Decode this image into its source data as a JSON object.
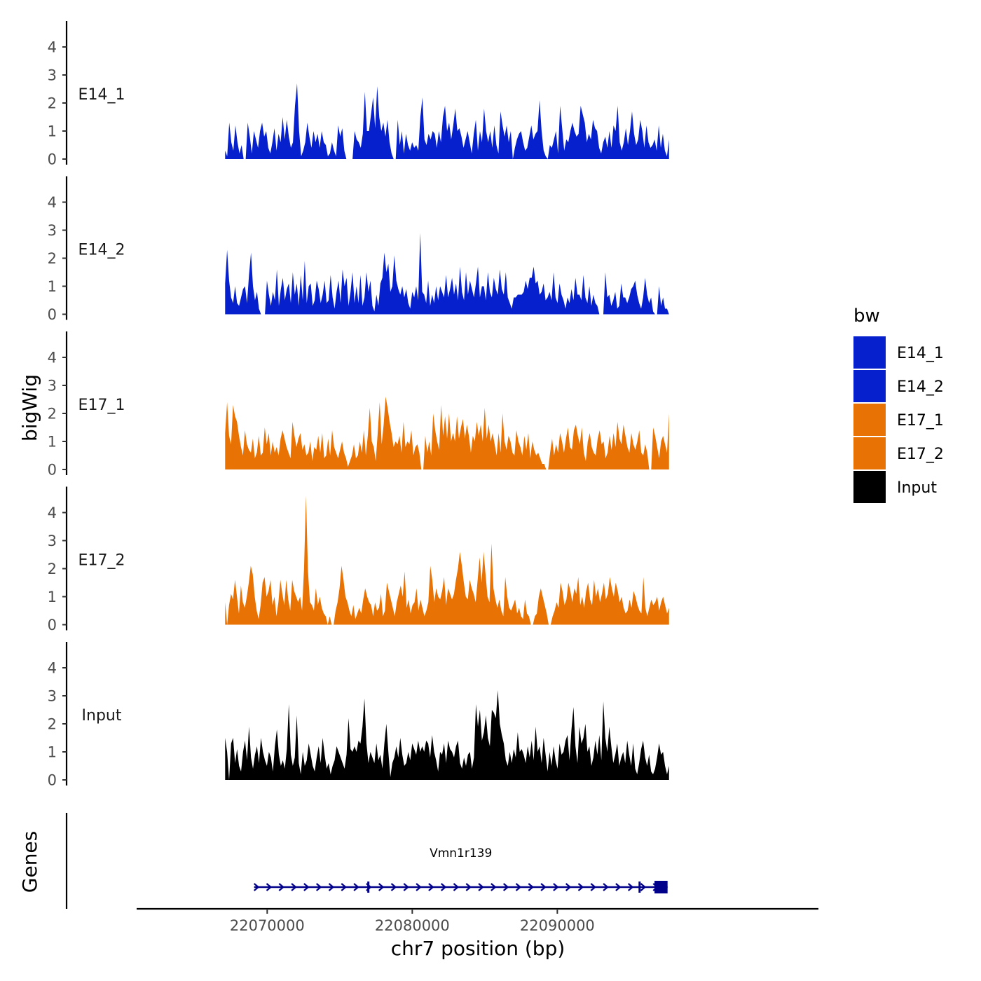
{
  "chart_data": {
    "type": "area",
    "ylabel": "bigWig",
    "xlabel": "chr7 position (bp)",
    "xlim": [
      22061000,
      22108000
    ],
    "region": [
      22067100,
      22097700
    ],
    "x_ticks": [
      22070000,
      22080000,
      22090000
    ],
    "x_tick_labels": [
      "22070000",
      "22080000",
      "22090000"
    ],
    "ylim": [
      0,
      4.9
    ],
    "y_ticks": [
      0,
      1,
      2,
      3,
      4
    ],
    "y_tick_labels": [
      "0",
      "1",
      "2",
      "3",
      "4"
    ],
    "legend": {
      "title": "bw",
      "entries": [
        {
          "name": "E14_1",
          "color": "#0520CC"
        },
        {
          "name": "E14_2",
          "color": "#0520CC"
        },
        {
          "name": "E17_1",
          "color": "#E87203"
        },
        {
          "name": "E17_2",
          "color": "#E87203"
        },
        {
          "name": "Input",
          "color": "#000000"
        }
      ]
    },
    "series": [
      {
        "name": "E14_1",
        "color": "#0520CC",
        "values": [
          0.3,
          0.1,
          1.3,
          0.6,
          0.3,
          1.2,
          0.6,
          0.2,
          0.5,
          0.0,
          0.0,
          1.3,
          0.8,
          0.2,
          1.0,
          0.7,
          0.4,
          1.0,
          1.3,
          0.8,
          1.0,
          0.4,
          0.2,
          0.6,
          1.1,
          0.3,
          0.9,
          0.6,
          1.5,
          0.7,
          1.4,
          0.8,
          0.4,
          0.6,
          1.9,
          2.7,
          1.0,
          0.1,
          0.3,
          0.6,
          1.3,
          0.8,
          0.4,
          1.0,
          0.6,
          0.9,
          0.4,
          1.0,
          0.6,
          0.5,
          0.1,
          0.2,
          0.6,
          0.3,
          0.1,
          1.2,
          0.8,
          1.1,
          0.3,
          0.0,
          0.0,
          0.0,
          0.0,
          1.0,
          0.7,
          0.6,
          0.4,
          0.9,
          2.4,
          1.0,
          1.0,
          1.6,
          2.2,
          1.1,
          2.6,
          1.5,
          1.0,
          1.3,
          0.8,
          1.4,
          0.6,
          0.2,
          0.0,
          0.0,
          1.4,
          0.5,
          1.0,
          0.2,
          0.9,
          0.5,
          0.3,
          0.6,
          0.4,
          0.5,
          0.3,
          1.5,
          2.2,
          0.7,
          0.5,
          0.9,
          0.7,
          1.0,
          0.9,
          0.4,
          1.0,
          0.6,
          1.5,
          1.9,
          1.0,
          1.3,
          0.7,
          1.2,
          1.8,
          1.0,
          1.1,
          0.8,
          0.4,
          0.7,
          1.0,
          0.6,
          0.2,
          0.9,
          1.4,
          0.3,
          1.0,
          0.6,
          1.8,
          1.0,
          0.6,
          1.0,
          0.4,
          1.2,
          0.5,
          0.2,
          1.7,
          1.2,
          0.8,
          1.2,
          0.6,
          1.0,
          0.0,
          0.4,
          0.7,
          0.9,
          1.0,
          0.6,
          0.3,
          0.4,
          0.8,
          1.2,
          0.7,
          0.9,
          1.0,
          2.1,
          1.0,
          0.3,
          0.1,
          0.0,
          0.5,
          0.4,
          0.7,
          1.0,
          0.2,
          1.9,
          1.1,
          0.3,
          0.7,
          0.6,
          1.0,
          1.3,
          1.0,
          0.8,
          0.9,
          1.9,
          1.6,
          1.3,
          0.6,
          0.9,
          0.7,
          1.4,
          1.1,
          1.0,
          0.4,
          0.2,
          0.6,
          0.8,
          0.4,
          1.0,
          0.4,
          1.2,
          1.0,
          1.9,
          0.6,
          0.3,
          0.6,
          1.1,
          0.5,
          1.0,
          1.7,
          0.9,
          0.5,
          0.7,
          1.4,
          1.0,
          0.4,
          1.2,
          0.6,
          0.4,
          0.5,
          0.7,
          0.3,
          1.2,
          0.4,
          0.9,
          0.3,
          0.1,
          0.7
        ]
      },
      {
        "name": "E14_2",
        "color": "#0520CC",
        "values": [
          1.1,
          2.3,
          1.2,
          0.6,
          0.4,
          1.0,
          0.4,
          0.3,
          0.6,
          0.9,
          1.0,
          0.4,
          1.4,
          2.2,
          1.0,
          0.5,
          0.8,
          0.2,
          0.0,
          0.0,
          0.0,
          1.2,
          0.7,
          0.3,
          0.8,
          0.5,
          1.6,
          0.3,
          0.9,
          1.3,
          0.5,
          0.9,
          1.1,
          0.4,
          1.5,
          0.7,
          1.1,
          0.3,
          1.4,
          0.5,
          1.9,
          0.4,
          1.0,
          1.1,
          0.3,
          0.5,
          1.2,
          0.9,
          0.4,
          0.7,
          1.2,
          0.4,
          0.5,
          1.4,
          0.6,
          0.2,
          0.8,
          1.2,
          0.4,
          1.6,
          1.0,
          1.3,
          0.3,
          0.8,
          1.5,
          0.4,
          1.0,
          0.4,
          1.4,
          0.3,
          0.6,
          1.5,
          0.8,
          1.2,
          0.3,
          0.1,
          0.7,
          0.3,
          1.1,
          1.3,
          2.2,
          1.5,
          1.8,
          0.8,
          1.0,
          2.1,
          1.2,
          0.9,
          0.7,
          1.0,
          0.6,
          0.9,
          0.4,
          0.2,
          0.8,
          0.6,
          1.0,
          0.5,
          2.9,
          0.8,
          0.7,
          0.4,
          1.2,
          0.3,
          0.7,
          0.4,
          1.0,
          0.5,
          1.0,
          0.8,
          0.6,
          1.4,
          0.6,
          0.9,
          1.3,
          0.7,
          1.1,
          0.5,
          1.7,
          0.8,
          0.5,
          1.5,
          0.7,
          1.2,
          0.9,
          0.6,
          1.1,
          1.7,
          0.6,
          1.0,
          1.0,
          0.5,
          1.5,
          0.8,
          0.6,
          1.3,
          0.9,
          0.7,
          1.6,
          0.9,
          0.7,
          1.5,
          0.6,
          0.4,
          0.2,
          0.6,
          0.6,
          0.7,
          0.7,
          0.7,
          0.8,
          1.2,
          0.9,
          1.3,
          1.3,
          1.7,
          1.1,
          1.2,
          0.7,
          0.8,
          1.1,
          0.5,
          0.6,
          0.8,
          0.5,
          1.5,
          0.6,
          0.4,
          1.1,
          0.7,
          0.5,
          0.2,
          0.6,
          0.4,
          0.9,
          0.5,
          1.3,
          0.7,
          0.7,
          0.5,
          1.4,
          0.6,
          0.4,
          1.0,
          0.3,
          0.7,
          0.4,
          0.3,
          0.0,
          0.0,
          0.0,
          1.5,
          0.6,
          0.7,
          0.3,
          0.5,
          0.8,
          0.2,
          0.3,
          1.1,
          0.6,
          0.6,
          0.4,
          0.6,
          0.9,
          1.0,
          1.2,
          0.7,
          0.4,
          0.2,
          0.6,
          1.3,
          0.7,
          0.4,
          0.6,
          0.1,
          0.0,
          0.0,
          1.0,
          0.3,
          0.6,
          0.2,
          0.2,
          0.0
        ]
      },
      {
        "name": "E17_1",
        "color": "#E87203",
        "values": [
          1.3,
          2.4,
          1.2,
          0.9,
          2.3,
          1.9,
          1.7,
          1.2,
          0.8,
          0.5,
          1.4,
          0.9,
          0.7,
          0.6,
          1.1,
          0.4,
          0.6,
          1.2,
          0.5,
          0.6,
          1.5,
          0.9,
          1.3,
          0.5,
          1.0,
          0.6,
          0.8,
          0.5,
          1.1,
          1.4,
          1.1,
          0.8,
          0.6,
          0.4,
          1.7,
          1.2,
          0.8,
          1.1,
          1.3,
          0.7,
          0.9,
          0.5,
          0.6,
          1.0,
          0.3,
          0.8,
          0.7,
          1.2,
          0.6,
          1.3,
          0.4,
          0.5,
          1.1,
          0.5,
          1.4,
          0.8,
          0.6,
          0.4,
          0.7,
          1.0,
          0.6,
          0.4,
          0.1,
          0.3,
          0.5,
          0.9,
          0.4,
          0.5,
          1.0,
          0.6,
          1.4,
          0.5,
          1.2,
          2.2,
          1.0,
          0.8,
          0.3,
          1.3,
          2.4,
          0.9,
          1.6,
          2.6,
          2.2,
          1.7,
          1.3,
          0.8,
          1.0,
          0.9,
          1.2,
          0.6,
          1.7,
          0.8,
          1.0,
          0.9,
          1.4,
          0.5,
          0.8,
          0.9,
          0.6,
          0.0,
          0.0,
          1.2,
          0.6,
          1.0,
          0.5,
          2.0,
          1.4,
          1.0,
          0.7,
          2.3,
          1.2,
          1.9,
          1.1,
          2.0,
          1.0,
          1.3,
          1.0,
          1.9,
          1.1,
          1.5,
          1.8,
          1.1,
          1.6,
          1.2,
          0.6,
          1.2,
          1.0,
          1.7,
          1.2,
          1.6,
          1.0,
          2.2,
          1.1,
          1.6,
          1.0,
          1.3,
          0.9,
          0.5,
          1.3,
          0.6,
          2.0,
          1.0,
          0.7,
          1.2,
          1.0,
          0.6,
          0.5,
          1.4,
          1.0,
          0.8,
          0.5,
          1.2,
          0.7,
          1.3,
          0.4,
          1.0,
          0.7,
          0.5,
          0.6,
          0.4,
          0.2,
          0.2,
          0.0,
          0.0,
          0.6,
          1.1,
          0.5,
          0.9,
          0.6,
          1.3,
          1.0,
          0.6,
          1.1,
          1.5,
          0.8,
          0.7,
          1.4,
          1.6,
          1.2,
          0.9,
          1.5,
          0.6,
          0.3,
          1.0,
          1.3,
          0.8,
          0.6,
          0.5,
          1.1,
          1.4,
          0.9,
          1.0,
          0.4,
          0.6,
          1.2,
          0.7,
          1.3,
          0.8,
          1.7,
          1.1,
          0.9,
          1.6,
          1.2,
          0.8,
          0.6,
          1.3,
          0.9,
          0.7,
          1.0,
          1.4,
          0.6,
          0.5,
          0.9,
          0.6,
          0.0,
          0.0,
          1.5,
          1.2,
          0.8,
          0.4,
          1.0,
          1.2,
          0.9,
          0.6,
          2.0
        ]
      },
      {
        "name": "E17_2",
        "color": "#E87203",
        "values": [
          0.8,
          0.0,
          0.7,
          1.1,
          0.9,
          1.6,
          1.0,
          0.4,
          1.4,
          0.8,
          0.6,
          1.0,
          1.5,
          2.1,
          1.8,
          1.0,
          0.5,
          0.2,
          0.7,
          1.5,
          1.7,
          1.0,
          1.2,
          1.6,
          0.7,
          1.0,
          0.3,
          0.8,
          1.6,
          1.1,
          0.7,
          1.6,
          0.9,
          0.5,
          1.6,
          1.2,
          1.0,
          0.8,
          1.0,
          0.5,
          2.0,
          4.6,
          1.9,
          0.8,
          0.7,
          0.5,
          1.3,
          0.7,
          1.0,
          0.6,
          0.4,
          0.3,
          0.0,
          0.3,
          0.0,
          0.0,
          0.5,
          0.8,
          1.3,
          2.1,
          1.6,
          1.0,
          0.8,
          0.5,
          0.3,
          0.7,
          0.2,
          0.4,
          0.6,
          0.4,
          0.9,
          1.3,
          1.0,
          0.8,
          0.7,
          0.3,
          0.8,
          0.5,
          0.6,
          1.1,
          0.3,
          0.5,
          1.5,
          1.2,
          0.9,
          0.6,
          0.3,
          0.8,
          1.1,
          1.4,
          1.0,
          1.9,
          0.6,
          0.9,
          0.4,
          0.7,
          0.8,
          1.3,
          0.5,
          0.9,
          0.6,
          0.3,
          0.5,
          0.8,
          2.1,
          1.6,
          0.8,
          1.3,
          1.0,
          0.9,
          1.2,
          1.7,
          0.7,
          1.3,
          1.1,
          0.9,
          1.1,
          1.6,
          2.0,
          2.6,
          2.1,
          1.5,
          1.0,
          0.9,
          1.6,
          1.3,
          1.1,
          0.8,
          1.6,
          2.4,
          1.5,
          2.6,
          1.8,
          1.0,
          0.8,
          2.9,
          1.3,
          0.9,
          0.6,
          0.9,
          0.5,
          0.3,
          1.7,
          1.0,
          0.6,
          0.5,
          0.7,
          0.9,
          0.4,
          0.6,
          0.3,
          0.2,
          0.9,
          0.4,
          0.3,
          0.0,
          0.0,
          0.3,
          0.4,
          1.0,
          1.3,
          1.0,
          0.7,
          0.4,
          0.0,
          0.0,
          0.3,
          0.5,
          0.8,
          0.6,
          1.5,
          1.2,
          0.7,
          0.9,
          1.5,
          1.2,
          0.8,
          1.3,
          1.1,
          1.7,
          0.7,
          1.0,
          0.6,
          1.2,
          1.5,
          0.9,
          0.7,
          1.6,
          1.0,
          1.3,
          0.8,
          1.1,
          1.5,
          0.9,
          1.1,
          1.7,
          1.3,
          1.0,
          1.5,
          1.2,
          0.8,
          1.0,
          0.6,
          0.4,
          0.5,
          0.9,
          0.6,
          1.2,
          1.0,
          0.7,
          0.5,
          0.4,
          1.7,
          0.6,
          0.3,
          0.6,
          0.9,
          0.7,
          0.8,
          1.0,
          0.5,
          0.8,
          1.0,
          0.7,
          0.4,
          0.6
        ]
      },
      {
        "name": "Input",
        "color": "#000000",
        "values": [
          1.5,
          1.0,
          0.0,
          1.3,
          1.5,
          0.6,
          1.1,
          0.5,
          0.3,
          1.0,
          1.4,
          0.7,
          1.9,
          0.8,
          0.4,
          0.9,
          1.2,
          0.6,
          1.5,
          1.0,
          0.7,
          0.5,
          1.0,
          0.8,
          0.3,
          1.2,
          1.8,
          0.9,
          0.5,
          0.7,
          0.4,
          1.1,
          2.7,
          0.9,
          0.5,
          0.8,
          2.3,
          0.6,
          0.2,
          1.0,
          0.5,
          0.7,
          1.3,
          0.9,
          0.5,
          0.3,
          0.8,
          1.2,
          0.6,
          1.5,
          0.9,
          0.4,
          0.6,
          0.2,
          0.5,
          0.7,
          1.2,
          1.0,
          0.8,
          0.6,
          0.4,
          0.9,
          2.2,
          1.1,
          1.0,
          1.2,
          1.0,
          1.4,
          1.3,
          1.9,
          2.9,
          1.3,
          0.6,
          1.0,
          0.8,
          0.6,
          1.3,
          0.7,
          0.9,
          0.4,
          1.3,
          2.0,
          1.0,
          0.1,
          0.6,
          0.8,
          1.2,
          0.8,
          1.5,
          0.9,
          0.5,
          0.6,
          1.0,
          0.7,
          1.3,
          1.1,
          0.9,
          1.4,
          1.0,
          1.2,
          1.0,
          1.4,
          1.3,
          0.8,
          1.6,
          1.0,
          0.7,
          0.3,
          1.0,
          0.9,
          1.3,
          0.6,
          1.4,
          1.1,
          1.0,
          0.8,
          1.2,
          1.4,
          0.6,
          0.4,
          0.8,
          0.5,
          0.9,
          1.0,
          0.4,
          0.8,
          2.7,
          1.9,
          2.5,
          1.4,
          1.7,
          2.3,
          1.5,
          1.2,
          2.5,
          2.4,
          2.2,
          3.2,
          2.0,
          1.6,
          1.3,
          0.7,
          0.5,
          1.0,
          0.6,
          1.1,
          0.8,
          1.7,
          1.0,
          1.1,
          0.9,
          0.6,
          1.2,
          0.8,
          1.4,
          0.7,
          1.9,
          1.0,
          1.2,
          0.6,
          1.5,
          0.9,
          0.3,
          1.0,
          0.5,
          1.2,
          0.7,
          0.4,
          1.3,
          0.9,
          1.0,
          1.4,
          1.6,
          0.7,
          1.8,
          2.6,
          1.2,
          0.6,
          1.9,
          1.3,
          1.5,
          2.0,
          1.0,
          1.2,
          0.5,
          0.8,
          1.4,
          0.9,
          1.6,
          0.7,
          2.8,
          1.5,
          1.0,
          1.9,
          1.2,
          0.6,
          0.9,
          1.3,
          0.5,
          0.8,
          1.0,
          0.6,
          1.4,
          0.9,
          0.5,
          1.3,
          0.4,
          0.2,
          0.6,
          1.1,
          1.4,
          0.8,
          0.5,
          0.9,
          0.3,
          0.2,
          0.4,
          0.8,
          1.3,
          0.9,
          1.0,
          0.5,
          0.2,
          0.5
        ]
      }
    ],
    "gene_track": {
      "ylabel": "Genes",
      "genes": [
        {
          "name": "Vmn1r139",
          "strand": "+",
          "start": 22069100,
          "end": 22097600,
          "exons": [
            [
              22076900,
              22077000
            ],
            [
              22095600,
              22095700
            ],
            [
              22096700,
              22097600
            ]
          ]
        }
      ]
    }
  }
}
